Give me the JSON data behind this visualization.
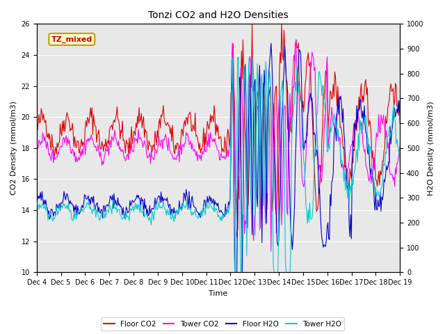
{
  "title": "Tonzi CO2 and H2O Densities",
  "xlabel": "Time",
  "ylabel_left": "CO2 Density (mmol/m3)",
  "ylabel_right": "H2O Density (mmol/m3)",
  "ylim_left": [
    10,
    26
  ],
  "ylim_right": [
    0,
    1000
  ],
  "yticks_left": [
    10,
    12,
    14,
    16,
    18,
    20,
    22,
    24,
    26
  ],
  "yticks_right": [
    0,
    100,
    200,
    300,
    400,
    500,
    600,
    700,
    800,
    900,
    1000
  ],
  "xtick_labels": [
    "Dec 4",
    "Dec 5",
    "Dec 6",
    "Dec 7",
    "Dec 8",
    "Dec 9",
    "Dec 10",
    "Dec 11",
    "Dec 12",
    "Dec 13",
    "Dec 14",
    "Dec 15",
    "Dec 16",
    "Dec 17",
    "Dec 18",
    "Dec 19"
  ],
  "annotation_text": "TZ_mixed",
  "annotation_color": "#cc0000",
  "annotation_bg": "#ffffcc",
  "annotation_border": "#cc9900",
  "colors": {
    "floor_co2": "#dd0000",
    "tower_co2": "#ff00ff",
    "floor_h2o": "#0000cc",
    "tower_h2o": "#00cccc"
  },
  "legend_labels": [
    "Floor CO2",
    "Tower CO2",
    "Floor H2O",
    "Tower H2O"
  ],
  "background_color": "#e8e8e8",
  "grid_color": "#ffffff",
  "figsize": [
    6.4,
    4.8
  ],
  "dpi": 100
}
